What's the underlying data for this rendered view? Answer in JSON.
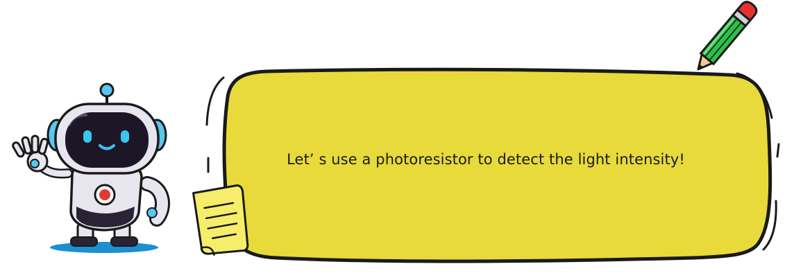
{
  "message": "Let’ s use a photoresistor to detect the  light intensity!",
  "colors": {
    "bubble_fill": "#E8DA3A",
    "outline": "#1a1a1a",
    "robot_face": "#1c1626",
    "robot_glow": "#39c6ef",
    "robot_chest_light": "#e23b2e",
    "robot_shadow": "#1c8fd0",
    "pencil_body": "#2fbf4a",
    "pencil_eraser": "#e5322f",
    "note_paper": "#f6ee6a"
  },
  "icons": [
    "robot-mascot-waving",
    "pencil-icon",
    "sticky-note-icon"
  ]
}
